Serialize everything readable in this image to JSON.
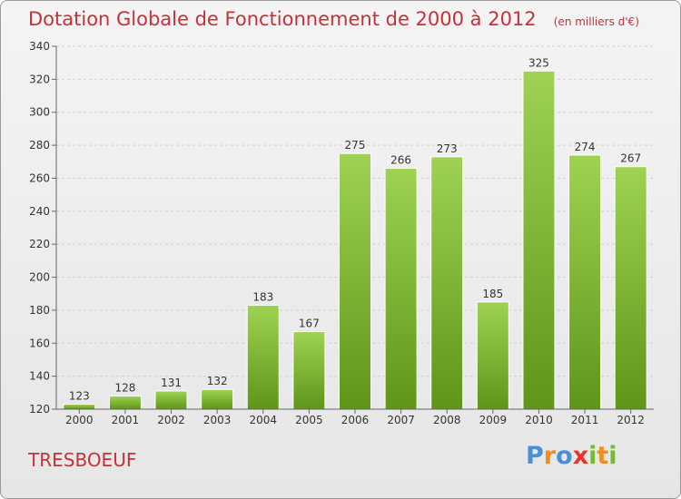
{
  "title": "Dotation Globale de Fonctionnement de 2000 à 2012",
  "unit_note": "(en milliers d'€)",
  "commune": "TRESBOEUF",
  "logo": {
    "letters": [
      "P",
      "r",
      "o",
      "x",
      "i",
      "t",
      "i"
    ],
    "colors": [
      "#4d8fd6",
      "#f28c1e",
      "#4d8fd6",
      "#e0382f",
      "#7ab83a",
      "#f28c1e",
      "#7ab83a"
    ]
  },
  "colors": {
    "title": "#c8303a",
    "bar_light": "#9fd252",
    "bar_dark": "#5f9618"
  },
  "chart_data": {
    "type": "bar",
    "categories": [
      "2000",
      "2001",
      "2002",
      "2003",
      "2004",
      "2005",
      "2006",
      "2007",
      "2008",
      "2009",
      "2010",
      "2011",
      "2012"
    ],
    "values": [
      123,
      128,
      131,
      132,
      183,
      167,
      275,
      266,
      273,
      185,
      325,
      274,
      267
    ],
    "ylim": [
      120,
      340
    ],
    "yticks": [
      120,
      140,
      160,
      180,
      200,
      220,
      240,
      260,
      280,
      300,
      320,
      340
    ],
    "grid": true,
    "title": "Dotation Globale de Fonctionnement de 2000 à 2012",
    "xlabel": "",
    "ylabel": ""
  }
}
